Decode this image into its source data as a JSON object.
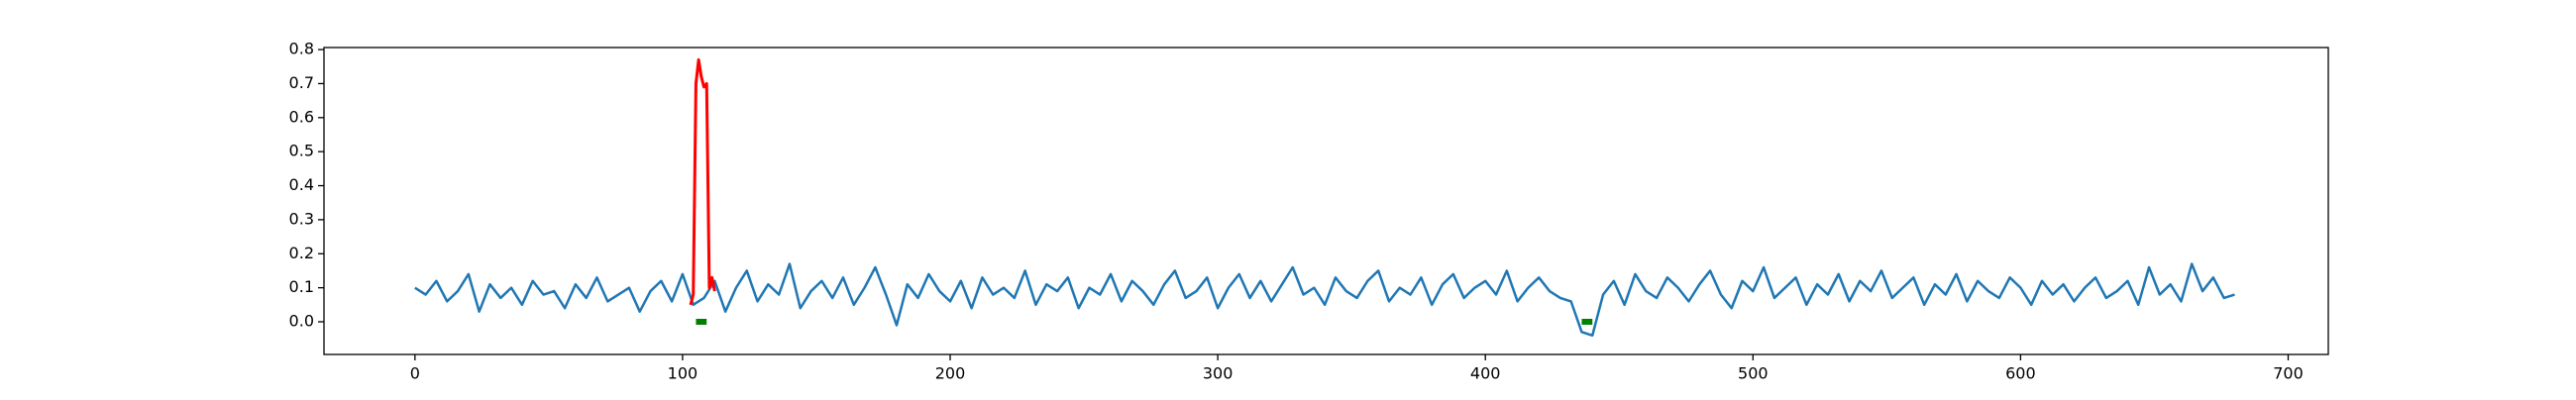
{
  "chart_data": {
    "type": "line",
    "xlim": [
      -34,
      715
    ],
    "ylim": [
      -0.096,
      0.806
    ],
    "xticks": [
      0,
      100,
      200,
      300,
      400,
      500,
      600,
      700
    ],
    "yticks": [
      {
        "value": 0,
        "label": "0.0"
      },
      0.1,
      0.2,
      0.3,
      0.4,
      0.5,
      0.6,
      0.7,
      0.8
    ],
    "series": [
      {
        "color": "#1f77b4",
        "width": 2.5,
        "x": [
          0,
          4,
          8,
          12,
          16,
          20,
          24,
          28,
          32,
          36,
          40,
          44,
          48,
          52,
          56,
          60,
          64,
          68,
          72,
          76,
          80,
          84,
          88,
          92,
          96,
          100,
          104,
          108,
          112,
          116,
          120,
          124,
          128,
          132,
          136,
          140,
          144,
          148,
          152,
          156,
          160,
          164,
          168,
          172,
          176,
          180,
          184,
          188,
          192,
          196,
          200,
          204,
          208,
          212,
          216,
          220,
          224,
          228,
          232,
          236,
          240,
          244,
          248,
          252,
          256,
          260,
          264,
          268,
          272,
          276,
          280,
          284,
          288,
          292,
          296,
          300,
          304,
          308,
          312,
          316,
          320,
          324,
          328,
          332,
          336,
          340,
          344,
          348,
          352,
          356,
          360,
          364,
          368,
          372,
          376,
          380,
          384,
          388,
          392,
          396,
          400,
          404,
          408,
          412,
          416,
          420,
          424,
          428,
          432,
          436,
          440,
          444,
          448,
          452,
          456,
          460,
          464,
          468,
          472,
          476,
          480,
          484,
          488,
          492,
          496,
          500,
          504,
          508,
          512,
          516,
          520,
          524,
          528,
          532,
          536,
          540,
          544,
          548,
          552,
          556,
          560,
          564,
          568,
          572,
          576,
          580,
          584,
          588,
          592,
          596,
          600,
          604,
          608,
          612,
          616,
          620,
          624,
          628,
          632,
          636,
          640,
          644,
          648,
          652,
          656,
          660,
          664,
          668,
          672,
          676,
          680
        ],
        "values": [
          0.1,
          0.08,
          0.12,
          0.06,
          0.09,
          0.14,
          0.03,
          0.11,
          0.07,
          0.1,
          0.05,
          0.12,
          0.08,
          0.09,
          0.04,
          0.11,
          0.07,
          0.13,
          0.06,
          0.08,
          0.1,
          0.03,
          0.09,
          0.12,
          0.06,
          0.14,
          0.05,
          0.07,
          0.12,
          0.03,
          0.1,
          0.15,
          0.06,
          0.11,
          0.08,
          0.17,
          0.04,
          0.09,
          0.12,
          0.07,
          0.13,
          0.05,
          0.1,
          0.16,
          0.08,
          -0.01,
          0.11,
          0.07,
          0.14,
          0.09,
          0.06,
          0.12,
          0.04,
          0.13,
          0.08,
          0.1,
          0.07,
          0.15,
          0.05,
          0.11,
          0.09,
          0.13,
          0.04,
          0.1,
          0.08,
          0.14,
          0.06,
          0.12,
          0.09,
          0.05,
          0.11,
          0.15,
          0.07,
          0.09,
          0.13,
          0.04,
          0.1,
          0.14,
          0.07,
          0.12,
          0.06,
          0.11,
          0.16,
          0.08,
          0.1,
          0.05,
          0.13,
          0.09,
          0.07,
          0.12,
          0.15,
          0.06,
          0.1,
          0.08,
          0.13,
          0.05,
          0.11,
          0.14,
          0.07,
          0.1,
          0.12,
          0.08,
          0.15,
          0.06,
          0.1,
          0.13,
          0.09,
          0.07,
          0.06,
          -0.03,
          -0.04,
          0.08,
          0.12,
          0.05,
          0.14,
          0.09,
          0.07,
          0.13,
          0.1,
          0.06,
          0.11,
          0.15,
          0.08,
          0.04,
          0.12,
          0.09,
          0.16,
          0.07,
          0.1,
          0.13,
          0.05,
          0.11,
          0.08,
          0.14,
          0.06,
          0.12,
          0.09,
          0.15,
          0.07,
          0.1,
          0.13,
          0.05,
          0.11,
          0.08,
          0.14,
          0.06,
          0.12,
          0.09,
          0.07,
          0.13,
          0.1,
          0.05,
          0.12,
          0.08,
          0.11,
          0.06,
          0.1,
          0.13,
          0.07,
          0.09,
          0.12,
          0.05,
          0.16,
          0.08,
          0.11,
          0.06,
          0.17,
          0.09,
          0.13,
          0.07,
          0.08
        ]
      },
      {
        "color": "#ff0000",
        "width": 3,
        "x": [
          103,
          104,
          105,
          106,
          107,
          108,
          109,
          110,
          111,
          112
        ],
        "values": [
          0.05,
          0.08,
          0.7,
          0.77,
          0.72,
          0.69,
          0.7,
          0.1,
          0.13,
          0.09
        ]
      },
      {
        "color": "#008000",
        "width": 6,
        "x": [
          105,
          109,
          null,
          436,
          440
        ],
        "values": [
          0,
          0,
          null,
          0,
          0
        ]
      }
    ]
  }
}
